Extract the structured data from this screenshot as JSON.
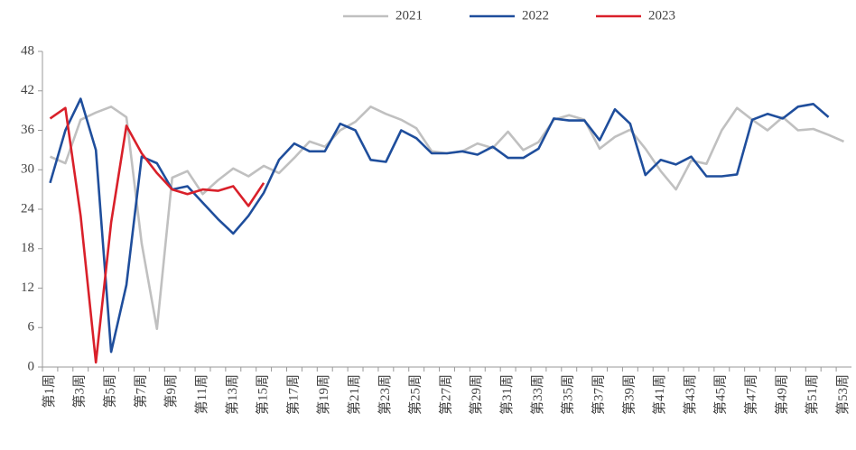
{
  "chart_data": {
    "type": "line",
    "categories": [
      "第1周",
      null,
      "第3周",
      null,
      "第5周",
      null,
      "第7周",
      null,
      "第9周",
      null,
      "第11周",
      null,
      "第13周",
      null,
      "第15周",
      null,
      "第17周",
      null,
      "第19周",
      null,
      "第21周",
      null,
      "第23周",
      null,
      "第25周",
      null,
      "第27周",
      null,
      "第29周",
      null,
      "第31周",
      null,
      "第33周",
      null,
      "第35周",
      null,
      "第37周",
      null,
      "第39周",
      null,
      "第41周",
      null,
      "第43周",
      null,
      "第45周",
      null,
      "第47周",
      null,
      "第49周",
      null,
      "第51周",
      null,
      "第53周"
    ],
    "series": [
      {
        "name": "2021",
        "color": "#c0c0c0",
        "values": [
          32,
          31,
          37.6,
          38.7,
          39.6,
          38,
          18.8,
          5.8,
          28.8,
          29.8,
          26.3,
          28.4,
          30.2,
          29,
          30.6,
          29.5,
          31.8,
          34.3,
          33.5,
          36,
          37.3,
          39.6,
          38.5,
          37.6,
          36.3,
          32.8,
          32.5,
          32.8,
          34,
          33.3,
          35.8,
          33,
          34.2,
          37.6,
          38.3,
          37.6,
          33.2,
          35,
          36.1,
          33.2,
          29.8,
          27,
          31.4,
          30.9,
          36,
          39.4,
          37.6,
          36,
          38,
          36,
          36.2,
          35.3,
          34.3
        ]
      },
      {
        "name": "2022",
        "color": "#1f4e9c",
        "values": [
          28,
          36,
          40.8,
          33,
          2.3,
          12.5,
          32,
          31,
          27,
          27.5,
          25,
          22.5,
          20.3,
          23,
          26.5,
          31.5,
          34,
          32.8,
          32.8,
          37,
          36,
          31.5,
          31.2,
          36,
          34.8,
          32.5,
          32.5,
          32.8,
          32.3,
          33.5,
          31.8,
          31.8,
          33.2,
          37.8,
          37.5,
          37.5,
          34.5,
          39.2,
          37,
          29.2,
          31.5,
          30.8,
          32,
          29,
          29,
          29.3,
          37.6,
          38.5,
          37.8,
          39.6,
          40,
          38,
          null
        ]
      },
      {
        "name": "2023",
        "color": "#d9202a",
        "values": [
          37.8,
          39.4,
          23,
          0.7,
          22,
          36.7,
          32.5,
          29.5,
          27,
          26.3,
          27,
          26.8,
          27.5,
          24.5,
          28,
          null,
          null,
          null,
          null,
          null,
          null,
          null,
          null,
          null,
          null,
          null,
          null,
          null,
          null,
          null,
          null,
          null,
          null,
          null,
          null,
          null,
          null,
          null,
          null,
          null,
          null,
          null,
          null,
          null,
          null,
          null,
          null,
          null,
          null,
          null,
          null,
          null,
          null
        ]
      }
    ],
    "ylim": [
      0,
      48
    ],
    "yticks": [
      0,
      6,
      12,
      18,
      24,
      30,
      36,
      42,
      48
    ],
    "legend": "top"
  }
}
